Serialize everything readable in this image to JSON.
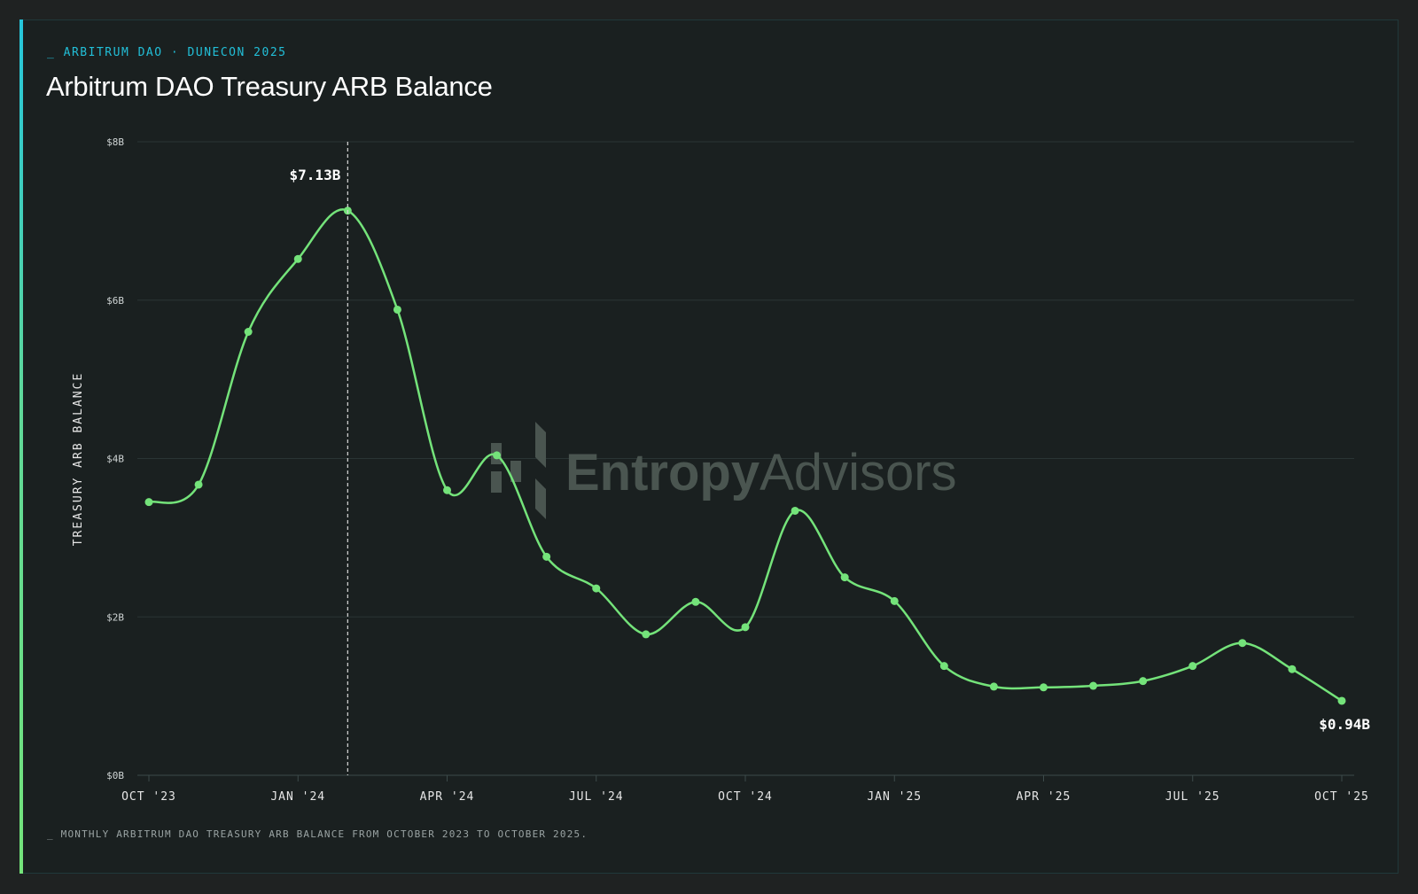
{
  "header": {
    "eyebrow": "_ ARBITRUM DAO · DUNECON 2025",
    "title": "Arbitrum DAO Treasury ARB Balance"
  },
  "footer": {
    "note": "_ MONTHLY ARBITRUM DAO TREASURY ARB BALANCE FROM OCTOBER 2023 TO OCTOBER 2025."
  },
  "watermark": {
    "brand_bold": "Entropy",
    "brand_light": "Advisors",
    "icon": "entropy-logo-icon"
  },
  "colors": {
    "background": "#1a2020",
    "line": "#74e37a",
    "accent": "#22bfd8",
    "grid": "#2a3434"
  },
  "chart_data": {
    "type": "line",
    "title": "Arbitrum DAO Treasury ARB Balance",
    "xlabel": "",
    "ylabel": "TREASURY ARB BALANCE",
    "ylim": [
      0,
      8
    ],
    "y_ticks": [
      0,
      2,
      4,
      6,
      8
    ],
    "y_tick_labels": [
      "$0B",
      "$2B",
      "$4B",
      "$6B",
      "$8B"
    ],
    "x_tick_labels": [
      "OCT '23",
      "JAN '24",
      "APR '24",
      "JUL '24",
      "OCT '24",
      "JAN '25",
      "APR '25",
      "JUL '25",
      "OCT '25"
    ],
    "x_tick_months": [
      "2023-10",
      "2024-01",
      "2024-04",
      "2024-07",
      "2024-10",
      "2025-01",
      "2025-04",
      "2025-07",
      "2025-10"
    ],
    "grid": true,
    "legend": "none",
    "series": [
      {
        "x": [
          "2023-10",
          "2023-11",
          "2023-12",
          "2024-01",
          "2024-02",
          "2024-03",
          "2024-04",
          "2024-05",
          "2024-06",
          "2024-07",
          "2024-08",
          "2024-09",
          "2024-10",
          "2024-11",
          "2024-12",
          "2025-01",
          "2025-02",
          "2025-03",
          "2025-04",
          "2025-05",
          "2025-06",
          "2025-07",
          "2025-08",
          "2025-09",
          "2025-10"
        ],
        "values": [
          3.45,
          3.67,
          5.6,
          6.52,
          7.13,
          5.88,
          3.6,
          4.04,
          2.76,
          2.36,
          1.78,
          2.19,
          1.87,
          3.34,
          2.5,
          2.2,
          1.38,
          1.12,
          1.11,
          1.13,
          1.19,
          1.38,
          1.67,
          1.34,
          0.94
        ]
      }
    ],
    "annotations": [
      {
        "x": "2024-02",
        "value": 7.13,
        "label": "$7.13B"
      },
      {
        "x": "2025-10",
        "value": 0.94,
        "label": "$0.94B"
      }
    ]
  }
}
